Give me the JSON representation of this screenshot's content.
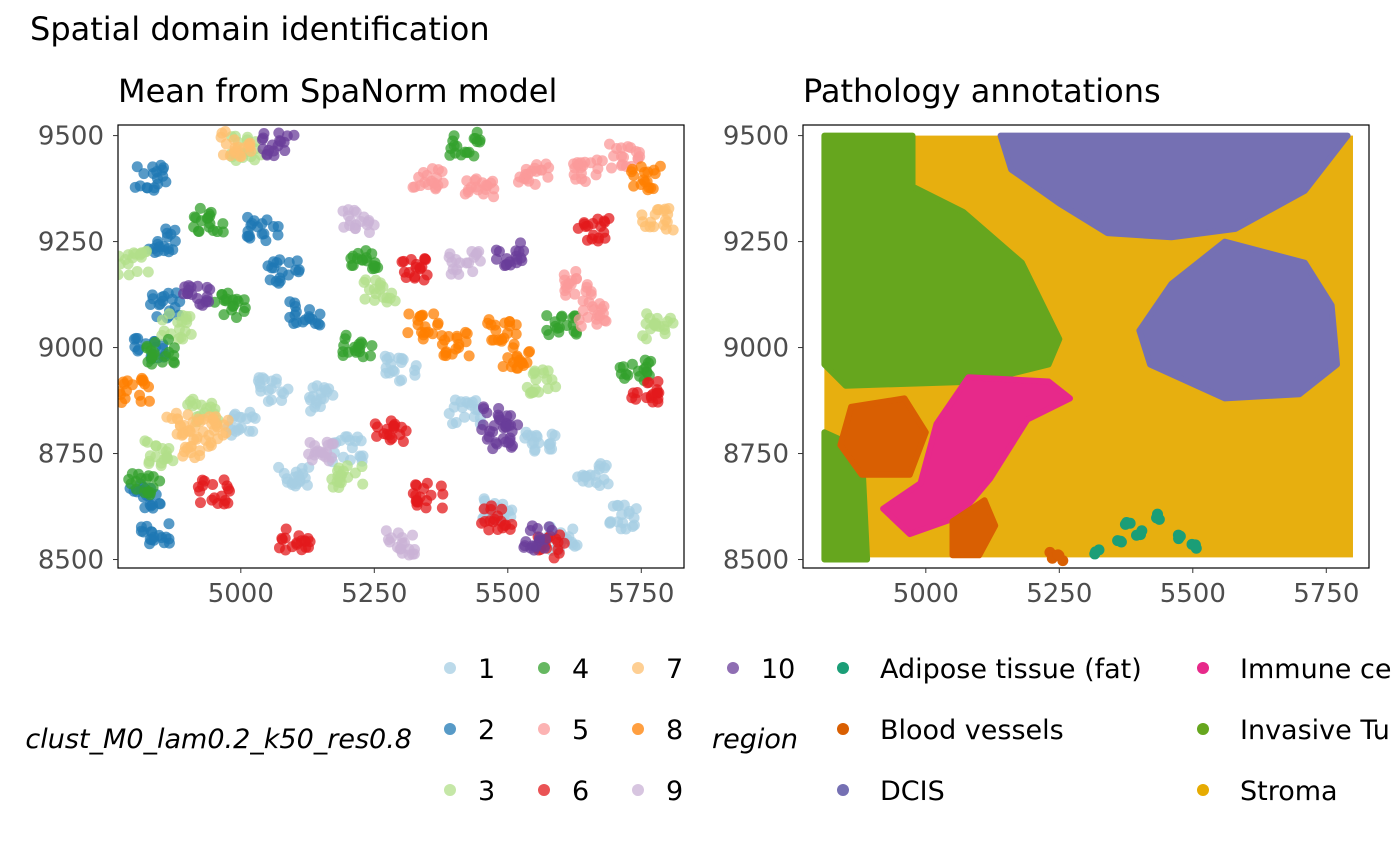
{
  "figure_title": "Spatial domain identification",
  "chart_data": [
    {
      "type": "scatter",
      "title": "Mean from SpaNorm model",
      "xlabel": "",
      "ylabel": "",
      "xlim": [
        4770,
        5830
      ],
      "ylim": [
        8480,
        9525
      ],
      "x_ticks": [
        5000,
        5250,
        5500,
        5750
      ],
      "y_ticks": [
        8500,
        8750,
        9000,
        9250,
        9500
      ],
      "grid": false,
      "color_variable": "clust_M0_lam0.2_k50_res0.8",
      "series": [
        {
          "name": "1",
          "color": "#A6CEE3"
        },
        {
          "name": "2",
          "color": "#1F78B4"
        },
        {
          "name": "3",
          "color": "#B2DF8A"
        },
        {
          "name": "4",
          "color": "#33A02C"
        },
        {
          "name": "5",
          "color": "#FB9A99"
        },
        {
          "name": "6",
          "color": "#E31A1C"
        },
        {
          "name": "7",
          "color": "#FDBF6F"
        },
        {
          "name": "8",
          "color": "#FF7F00"
        },
        {
          "name": "9",
          "color": "#CAB2D6"
        },
        {
          "name": "10",
          "color": "#6A3D9A"
        }
      ],
      "regions": [
        {
          "series": "1",
          "points": [
            [
              5060,
              8900
            ],
            [
              5150,
              8880
            ],
            [
              5000,
              8820
            ],
            [
              5200,
              8760
            ],
            [
              5100,
              8700
            ],
            [
              5300,
              8950
            ],
            [
              5420,
              8850
            ],
            [
              5560,
              8780
            ],
            [
              5660,
              8700
            ],
            [
              5720,
              8600
            ],
            [
              5600,
              8550
            ],
            [
              5480,
              8620
            ]
          ]
        },
        {
          "series": "2",
          "points": [
            [
              4830,
              9400
            ],
            [
              4850,
              9250
            ],
            [
              4860,
              9100
            ],
            [
              4830,
              9000
            ],
            [
              5080,
              9180
            ],
            [
              5120,
              9080
            ],
            [
              5040,
              9280
            ],
            [
              4820,
              8650
            ],
            [
              4840,
              8560
            ]
          ]
        },
        {
          "series": "3",
          "points": [
            [
              4800,
              9200
            ],
            [
              4880,
              9050
            ],
            [
              4930,
              8850
            ],
            [
              4850,
              8750
            ],
            [
              5200,
              8700
            ],
            [
              5260,
              9130
            ],
            [
              5560,
              8920
            ],
            [
              5780,
              9050
            ],
            [
              5010,
              9470
            ]
          ]
        },
        {
          "series": "4",
          "points": [
            [
              4850,
              8990
            ],
            [
              4940,
              9300
            ],
            [
              4980,
              9100
            ],
            [
              5230,
              9200
            ],
            [
              5220,
              9000
            ],
            [
              5420,
              9480
            ],
            [
              5600,
              9050
            ],
            [
              5740,
              8950
            ],
            [
              4820,
              8680
            ]
          ]
        },
        {
          "series": "5",
          "points": [
            [
              5350,
              9400
            ],
            [
              5450,
              9380
            ],
            [
              5550,
              9410
            ],
            [
              5650,
              9420
            ],
            [
              5720,
              9450
            ],
            [
              5630,
              9150
            ],
            [
              5660,
              9080
            ]
          ]
        },
        {
          "series": "6",
          "points": [
            [
              5280,
              8800
            ],
            [
              5350,
              8650
            ],
            [
              5480,
              8600
            ],
            [
              5580,
              8530
            ],
            [
              5760,
              8900
            ],
            [
              5330,
              9180
            ],
            [
              5660,
              9280
            ],
            [
              5100,
              8550
            ],
            [
              4950,
              8660
            ]
          ]
        },
        {
          "series": "7",
          "points": [
            [
              4890,
              8820
            ],
            [
              4950,
              8810
            ],
            [
              4920,
              8770
            ],
            [
              5780,
              9300
            ],
            [
              4990,
              9480
            ]
          ]
        },
        {
          "series": "8",
          "points": [
            [
              5340,
              9050
            ],
            [
              5400,
              9010
            ],
            [
              5490,
              9040
            ],
            [
              5520,
              8980
            ],
            [
              5760,
              9400
            ],
            [
              4800,
              8900
            ]
          ]
        },
        {
          "series": "9",
          "points": [
            [
              5220,
              9300
            ],
            [
              5150,
              8750
            ],
            [
              5420,
              9200
            ],
            [
              5300,
              8540
            ]
          ]
        },
        {
          "series": "10",
          "points": [
            [
              5480,
              8830
            ],
            [
              5490,
              8790
            ],
            [
              5500,
              9220
            ],
            [
              5070,
              9480
            ],
            [
              4920,
              9120
            ],
            [
              5560,
              8550
            ]
          ]
        }
      ]
    },
    {
      "type": "scatter",
      "title": "Pathology annotations",
      "xlabel": "",
      "ylabel": "",
      "xlim": [
        4770,
        5830
      ],
      "ylim": [
        8480,
        9525
      ],
      "x_ticks": [
        5000,
        5250,
        5500,
        5750
      ],
      "y_ticks": [
        8500,
        8750,
        9000,
        9250,
        9500
      ],
      "grid": false,
      "color_variable": "region",
      "series": [
        {
          "name": "Adipose tissue (fat)",
          "color": "#1B9E77"
        },
        {
          "name": "Blood vessels",
          "color": "#D95F02"
        },
        {
          "name": "DCIS",
          "color": "#7570B3"
        },
        {
          "name": "Immune ce",
          "color": "#E7298A"
        },
        {
          "name": "Invasive Tu",
          "color": "#66A61E"
        },
        {
          "name": "Stroma",
          "color": "#E6AB02"
        }
      ],
      "regions": [
        {
          "series": "Invasive Tu",
          "polygon": [
            [
              4810,
              9500
            ],
            [
              4975,
              9500
            ],
            [
              4975,
              9380
            ],
            [
              5070,
              9320
            ],
            [
              5180,
              9200
            ],
            [
              5250,
              9020
            ],
            [
              5230,
              8960
            ],
            [
              5100,
              8920
            ],
            [
              4850,
              8910
            ],
            [
              4810,
              8960
            ]
          ]
        },
        {
          "series": "Invasive Tu",
          "polygon": [
            [
              4810,
              8800
            ],
            [
              4880,
              8760
            ],
            [
              4890,
              8500
            ],
            [
              4810,
              8500
            ]
          ]
        },
        {
          "series": "DCIS",
          "polygon": [
            [
              5140,
              9500
            ],
            [
              5790,
              9500
            ],
            [
              5710,
              9370
            ],
            [
              5580,
              9280
            ],
            [
              5460,
              9260
            ],
            [
              5340,
              9270
            ],
            [
              5250,
              9340
            ],
            [
              5160,
              9420
            ]
          ]
        },
        {
          "series": "DCIS",
          "polygon": [
            [
              5560,
              9250
            ],
            [
              5710,
              9200
            ],
            [
              5760,
              9100
            ],
            [
              5770,
              8960
            ],
            [
              5700,
              8890
            ],
            [
              5560,
              8880
            ],
            [
              5420,
              8960
            ],
            [
              5400,
              9040
            ],
            [
              5460,
              9150
            ]
          ]
        },
        {
          "series": "Immune ce",
          "polygon": [
            [
              5080,
              8930
            ],
            [
              5230,
              8920
            ],
            [
              5270,
              8880
            ],
            [
              5190,
              8830
            ],
            [
              5120,
              8690
            ],
            [
              5060,
              8600
            ],
            [
              4970,
              8560
            ],
            [
              4920,
              8620
            ],
            [
              4990,
              8680
            ],
            [
              5020,
              8820
            ]
          ]
        },
        {
          "series": "Blood vessels",
          "polygon": [
            [
              4860,
              8860
            ],
            [
              4960,
              8880
            ],
            [
              5000,
              8800
            ],
            [
              4970,
              8700
            ],
            [
              4880,
              8700
            ],
            [
              4840,
              8770
            ]
          ]
        },
        {
          "series": "Blood vessels",
          "polygon": [
            [
              5050,
              8590
            ],
            [
              5110,
              8640
            ],
            [
              5130,
              8580
            ],
            [
              5100,
              8510
            ],
            [
              5050,
              8510
            ]
          ]
        },
        {
          "series": "Adipose tissue (fat)",
          "points": [
            [
              5320,
              8520
            ],
            [
              5360,
              8540
            ],
            [
              5380,
              8580
            ],
            [
              5400,
              8560
            ],
            [
              5470,
              8550
            ],
            [
              5500,
              8530
            ],
            [
              5440,
              8600
            ]
          ]
        },
        {
          "series": "Blood vessels",
          "points": [
            [
              5240,
              8510
            ],
            [
              5250,
              8505
            ]
          ]
        }
      ]
    }
  ],
  "legend_left": {
    "title": "clust_M0_lam0.2_k50_res0.8",
    "entries": [
      "1",
      "2",
      "3",
      "4",
      "5",
      "6",
      "7",
      "8",
      "9",
      "10"
    ]
  },
  "legend_right": {
    "title": "region",
    "entries": [
      "Adipose tissue (fat)",
      "Blood vessels",
      "DCIS",
      "Immune ce",
      "Invasive Tu",
      "Stroma"
    ]
  },
  "icons": [
    "legend-key-dot-icon"
  ]
}
